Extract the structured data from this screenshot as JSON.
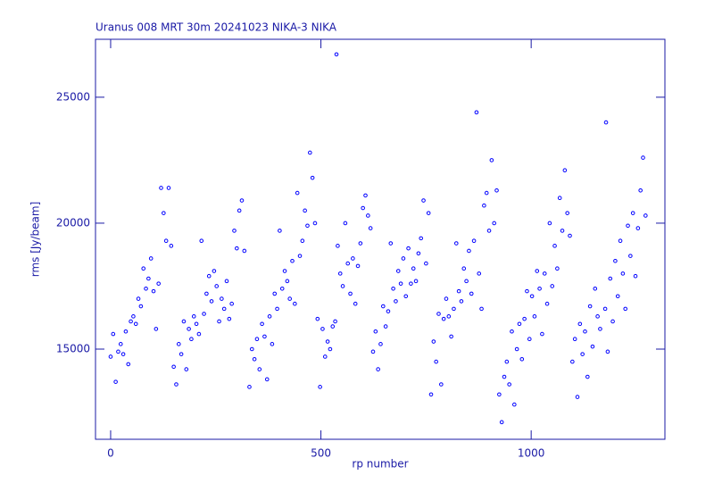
{
  "chart_data": {
    "type": "scatter",
    "title": "Uranus   008 MRT 30m  20241023 NIKA-3 NIKA",
    "x_label": "rp number",
    "y_label": "rms [Jy/beam]",
    "color": "#0000ff",
    "xlim": [
      -36,
      1318
    ],
    "ylim": [
      11420,
      27300
    ],
    "xticks": [
      0,
      500,
      1000
    ],
    "yticks": [
      15000,
      20000,
      25000
    ],
    "x": [
      0,
      6,
      12,
      18,
      24,
      30,
      36,
      42,
      48,
      54,
      60,
      66,
      72,
      78,
      84,
      90,
      96,
      102,
      108,
      114,
      120,
      126,
      132,
      138,
      144,
      150,
      156,
      162,
      168,
      174,
      180,
      186,
      192,
      198,
      204,
      210,
      216,
      222,
      228,
      234,
      240,
      246,
      252,
      258,
      264,
      270,
      276,
      282,
      288,
      294,
      300,
      306,
      312,
      318,
      330,
      336,
      342,
      348,
      354,
      360,
      366,
      372,
      378,
      384,
      390,
      396,
      402,
      408,
      414,
      420,
      426,
      432,
      438,
      444,
      450,
      456,
      462,
      468,
      474,
      480,
      486,
      492,
      498,
      504,
      510,
      516,
      522,
      528,
      534,
      537,
      540,
      546,
      552,
      558,
      564,
      570,
      576,
      582,
      588,
      594,
      600,
      606,
      612,
      618,
      624,
      630,
      636,
      642,
      648,
      654,
      660,
      666,
      672,
      678,
      684,
      690,
      696,
      702,
      708,
      714,
      720,
      726,
      732,
      738,
      744,
      750,
      756,
      762,
      768,
      774,
      780,
      786,
      792,
      798,
      804,
      810,
      816,
      822,
      828,
      834,
      840,
      846,
      852,
      858,
      864,
      870,
      876,
      882,
      888,
      894,
      900,
      906,
      912,
      918,
      924,
      930,
      936,
      942,
      948,
      954,
      960,
      966,
      972,
      978,
      984,
      990,
      996,
      1002,
      1008,
      1014,
      1020,
      1026,
      1032,
      1038,
      1044,
      1050,
      1056,
      1062,
      1068,
      1074,
      1080,
      1086,
      1092,
      1098,
      1104,
      1110,
      1116,
      1122,
      1128,
      1134,
      1140,
      1146,
      1152,
      1158,
      1164,
      1176,
      1178,
      1182,
      1188,
      1194,
      1200,
      1206,
      1212,
      1218,
      1224,
      1230,
      1236,
      1242,
      1248,
      1254,
      1260,
      1266,
      1272
    ],
    "y": [
      14700,
      15600,
      13700,
      14900,
      15200,
      14800,
      15700,
      14400,
      16100,
      16300,
      16000,
      17000,
      16700,
      18200,
      17400,
      17800,
      18600,
      17300,
      15800,
      17600,
      21400,
      20400,
      19300,
      21400,
      19100,
      14300,
      13600,
      15200,
      14800,
      16100,
      14200,
      15800,
      15400,
      16300,
      16000,
      15600,
      19300,
      16400,
      17200,
      17900,
      16900,
      18100,
      17500,
      16100,
      17000,
      16600,
      17700,
      16200,
      16800,
      19700,
      19000,
      20500,
      20900,
      18900,
      13500,
      15000,
      14600,
      15400,
      14200,
      16000,
      15500,
      13800,
      16300,
      15200,
      17200,
      16600,
      19700,
      17400,
      18100,
      17700,
      17000,
      18500,
      16800,
      21200,
      18700,
      19300,
      20500,
      19900,
      22800,
      21800,
      20000,
      16200,
      13500,
      15800,
      14700,
      15300,
      15000,
      15900,
      16100,
      26700,
      19100,
      18000,
      17500,
      20000,
      18400,
      17200,
      18600,
      16800,
      18300,
      19200,
      20600,
      21100,
      20300,
      19800,
      14900,
      15700,
      14200,
      15200,
      16700,
      15900,
      16500,
      19200,
      17400,
      16900,
      18100,
      17600,
      18600,
      17100,
      19000,
      17600,
      18200,
      17700,
      18800,
      19400,
      20900,
      18400,
      20400,
      13200,
      15300,
      14500,
      16400,
      13600,
      16200,
      17000,
      16300,
      15500,
      16600,
      19200,
      17300,
      16900,
      18200,
      17700,
      18900,
      17200,
      19300,
      24400,
      18000,
      16600,
      20700,
      21200,
      19700,
      22500,
      20000,
      21300,
      13200,
      12100,
      13900,
      14500,
      13600,
      15700,
      12800,
      15000,
      16000,
      14600,
      16200,
      17300,
      15400,
      17100,
      16300,
      18100,
      17400,
      15600,
      18000,
      16800,
      20000,
      17500,
      19100,
      18200,
      21000,
      19700,
      22100,
      20400,
      19500,
      14500,
      15400,
      13100,
      16000,
      14800,
      15700,
      13900,
      16700,
      15100,
      17400,
      16300,
      15800,
      16600,
      24000,
      14900,
      17800,
      16100,
      18500,
      17100,
      19300,
      18000,
      16600,
      19900,
      18700,
      20400,
      17900,
      19800,
      21300,
      22600,
      20300
    ]
  }
}
